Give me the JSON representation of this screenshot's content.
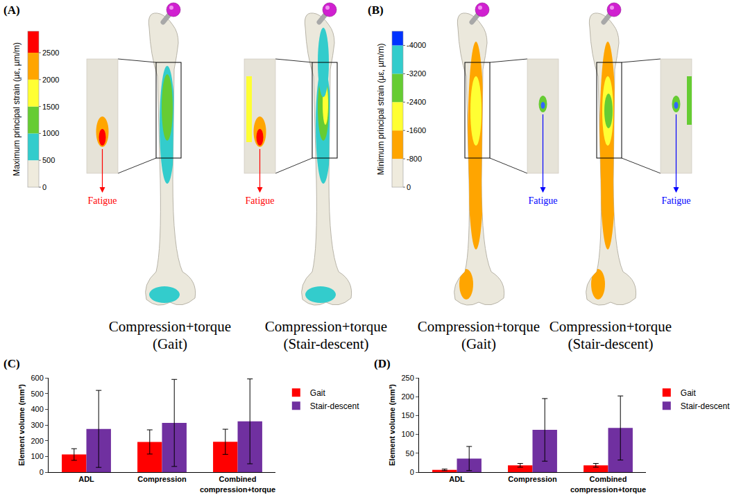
{
  "figure_panels": [
    {
      "label": "(A)",
      "colorbar": {
        "title": "Maximum principal strain (με, µm/m)",
        "range": [
          0,
          2900
        ],
        "ticks": [
          0,
          500,
          1000,
          1500,
          2000,
          2500
        ],
        "colors": [
          "#efebdd",
          "#33cccc",
          "#66cc33",
          "#ffff33",
          "#ffa500",
          "#ff0000"
        ]
      },
      "models": [
        {
          "caption": "Compression+torque (Gait)",
          "annotation": "Fatigue",
          "annotation_color": "#ff0000"
        },
        {
          "caption": "Compression+torque (Stair-descent)",
          "annotation": "Fatigue",
          "annotation_color": "#ff0000"
        }
      ]
    },
    {
      "label": "(B)",
      "colorbar": {
        "title": "Minimum principal strain (με, µm/m)",
        "range": [
          0,
          -4400
        ],
        "ticks": [
          0,
          -800,
          -1600,
          -2400,
          -3200,
          -4000
        ],
        "colors": [
          "#efebdd",
          "#ffa500",
          "#ffff33",
          "#66cc33",
          "#33cccc",
          "#0033ff"
        ]
      },
      "models": [
        {
          "caption": "Compression+torque (Gait)",
          "annotation": "Fatigue",
          "annotation_color": "#0000ff"
        },
        {
          "caption": "Compression+torque (Stair-descent)",
          "annotation": "Fatigue",
          "annotation_color": "#0000ff"
        }
      ]
    }
  ],
  "chart_data": [
    {
      "label": "(C)",
      "type": "bar",
      "categories": [
        "ADL",
        "Compression",
        "Combined compression+torque"
      ],
      "ylabel": "Element volume (mm³)",
      "ylim": [
        0,
        600
      ],
      "yticks": [
        0,
        100,
        200,
        300,
        400,
        500,
        600
      ],
      "grid": false,
      "legend": "right",
      "series": [
        {
          "name": "Gait",
          "color": "#ff0000",
          "values": [
            112,
            192,
            193
          ],
          "errors": [
            37,
            77,
            80
          ]
        },
        {
          "name": "Stair-descent",
          "color": "#7030a0",
          "values": [
            275,
            313,
            323
          ],
          "errors": [
            245,
            277,
            270
          ]
        }
      ]
    },
    {
      "label": "(D)",
      "type": "bar",
      "categories": [
        "ADL",
        "Compression",
        "Combined compression+torque"
      ],
      "ylabel": "Element volume (mm³)",
      "ylim": [
        0,
        250
      ],
      "yticks": [
        0,
        50,
        100,
        150,
        200,
        250
      ],
      "grid": false,
      "legend": "right",
      "series": [
        {
          "name": "Gait",
          "color": "#ff0000",
          "values": [
            6,
            18,
            18
          ],
          "errors": [
            2,
            5,
            5
          ]
        },
        {
          "name": "Stair-descent",
          "color": "#7030a0",
          "values": [
            36,
            112,
            117
          ],
          "errors": [
            32,
            83,
            85
          ]
        }
      ]
    }
  ]
}
